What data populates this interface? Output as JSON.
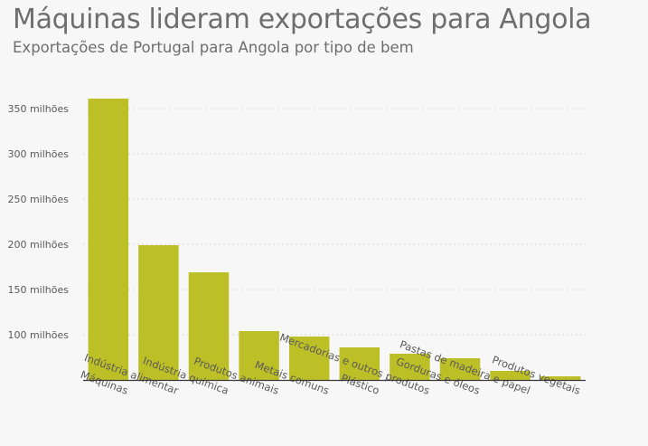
{
  "header": {
    "title": "Máquinas lideram exportações para Angola",
    "subtitle": "Exportações de Portugal para Angola por tipo de bem"
  },
  "chart_data": {
    "type": "bar",
    "title": "Máquinas lideram exportações para Angola",
    "subtitle": "Exportações de Portugal para Angola por tipo de bem",
    "xlabel": "",
    "ylabel": "",
    "categories": [
      "Máquinas",
      "Indústria alimentar",
      "Indústria química",
      "Produtos animais",
      "Metais comuns",
      "Plástico",
      "Mercadorias e outros produtos",
      "Gorduras e óleos",
      "Pastas de madeira e papel",
      "Produtos vegetais"
    ],
    "values": [
      361000000,
      199000000,
      169000000,
      104000000,
      98000000,
      86000000,
      79000000,
      74000000,
      60000000,
      54000000
    ],
    "ylim": [
      50000000,
      370000000
    ],
    "yticks": [
      100000000,
      150000000,
      200000000,
      250000000,
      300000000,
      350000000
    ],
    "ytick_labels": [
      "100 milhões",
      "150 milhões",
      "200 milhões",
      "250 milhões",
      "300 milhões",
      "350 milhões"
    ],
    "grid": true,
    "bar_color": "#bdbf27",
    "axis_color": "#3a3a3a",
    "grid_color": "#d9d9d9"
  }
}
